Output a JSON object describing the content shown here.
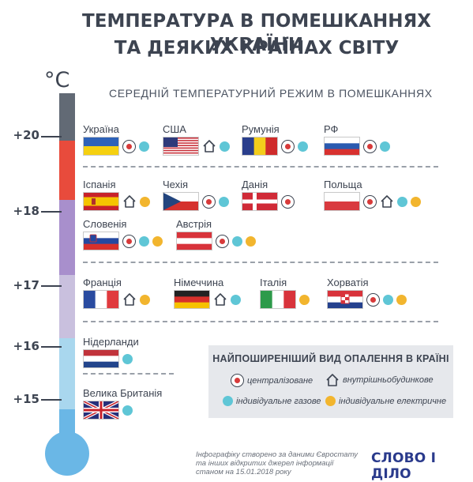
{
  "title_line1": "ТЕМПЕРАТУРА В ПОМЕШКАННЯХ УКРАЇНИ",
  "title_line2": "ТА ДЕЯКИХ КРАЇНАХ СВІТУ",
  "subtitle": "СЕРЕДНІЙ ТЕМПЕРАТУРНИЙ РЕЖИМ В ПОМЕШКАННЯХ",
  "unit": "°C",
  "ticks": [
    "+20",
    "+18",
    "+17",
    "+16",
    "+15"
  ],
  "countries": [
    {
      "name": "Україна",
      "flag": "ukraine",
      "heating": [
        "central",
        "gas"
      ]
    },
    {
      "name": "США",
      "flag": "usa",
      "heating": [
        "house",
        "gas"
      ]
    },
    {
      "name": "Румунія",
      "flag": "romania",
      "heating": [
        "central",
        "gas"
      ]
    },
    {
      "name": "РФ",
      "flag": "russia",
      "heating": [
        "central",
        "gas"
      ]
    },
    {
      "name": "Іспанія",
      "flag": "spain",
      "heating": [
        "house",
        "electric"
      ]
    },
    {
      "name": "Чехія",
      "flag": "czech",
      "heating": [
        "central",
        "gas"
      ]
    },
    {
      "name": "Данія",
      "flag": "denmark",
      "heating": [
        "central"
      ]
    },
    {
      "name": "Польща",
      "flag": "poland",
      "heating": [
        "central",
        "house",
        "gas",
        "electric"
      ]
    },
    {
      "name": "Словенія",
      "flag": "slovenia",
      "heating": [
        "central",
        "gas",
        "electric"
      ]
    },
    {
      "name": "Австрія",
      "flag": "austria",
      "heating": [
        "central",
        "gas",
        "electric"
      ]
    },
    {
      "name": "Франція",
      "flag": "france",
      "heating": [
        "house",
        "electric"
      ]
    },
    {
      "name": "Німеччина",
      "flag": "germany",
      "heating": [
        "house",
        "gas"
      ]
    },
    {
      "name": "Італія",
      "flag": "italy",
      "heating": [
        "electric"
      ]
    },
    {
      "name": "Хорватія",
      "flag": "croatia",
      "heating": [
        "central",
        "gas",
        "electric"
      ]
    },
    {
      "name": "Нідерланди",
      "flag": "netherlands",
      "heating": [
        "gas"
      ]
    },
    {
      "name": "Велика Британія",
      "flag": "uk",
      "heating": [
        "gas"
      ]
    }
  ],
  "legend": {
    "title": "НАЙПОШИРЕНІШИЙ ВИД ОПАЛЕННЯ В КРАЇНІ",
    "central": "централізоване",
    "house": "внутрішньобудинкове",
    "gas": "індивідуальне газове",
    "electric": "індивідуальне електричне"
  },
  "footnote": "Інфографіку створено за даними Євростату та інших відкритих джерел інформації станом на 15.01.2018 року",
  "logo": "СЛОВО І ДІЛО",
  "colors": {
    "central": "#d73a3a",
    "gas": "#5fc6d6",
    "electric": "#f2b52e",
    "text": "#3d4451"
  }
}
